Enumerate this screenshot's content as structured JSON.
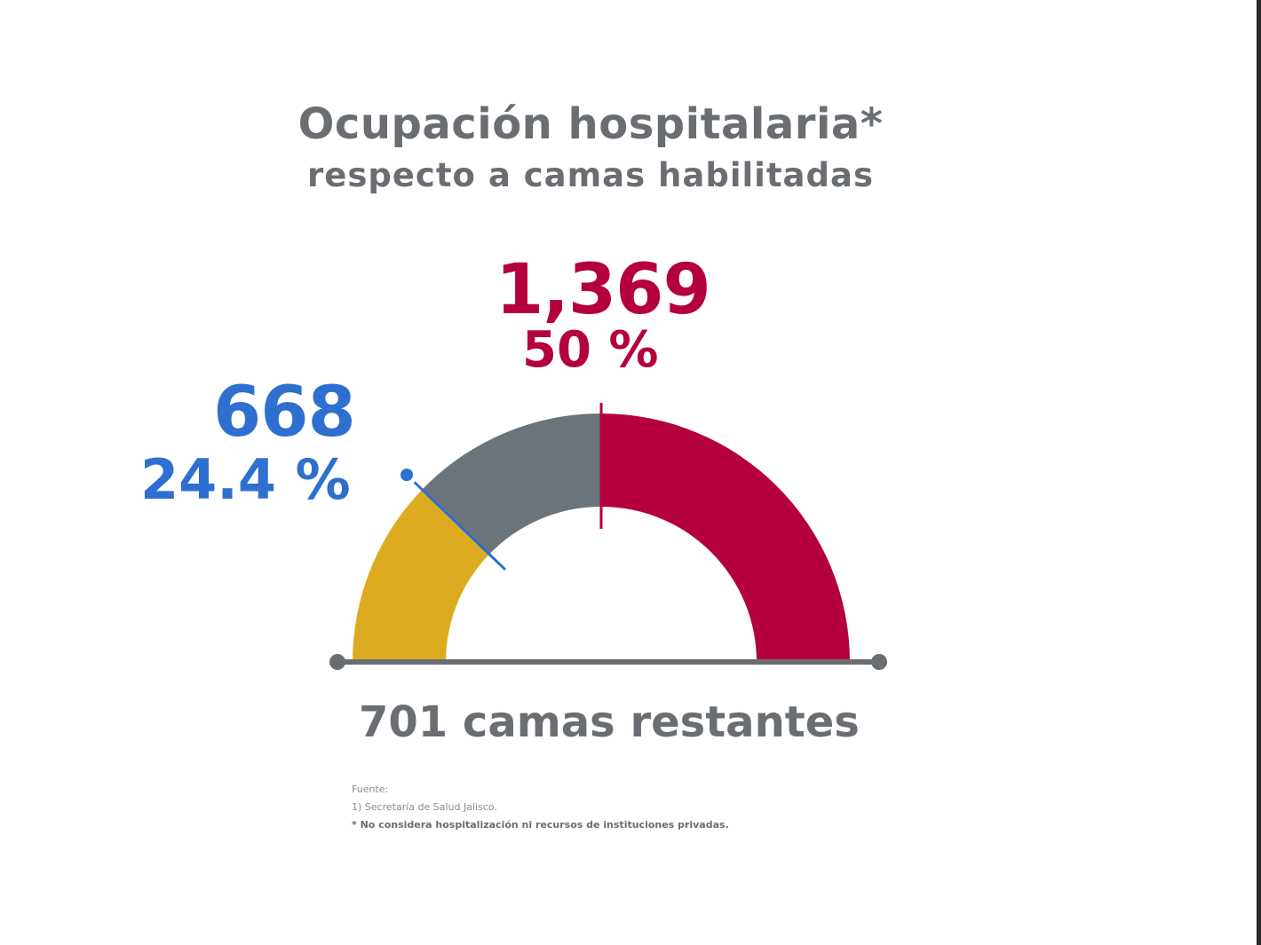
{
  "title": "Ocupación hospitalaria*",
  "subtitle": "respecto a camas habilitadas",
  "chart_data": {
    "type": "gauge",
    "segments": [
      {
        "name": "yellow-segment",
        "color": "#ddab1f",
        "fraction": 0.244
      },
      {
        "name": "gray-segment",
        "color": "#6b747b",
        "fraction": 0.256
      },
      {
        "name": "red-segment",
        "color": "#b5003f",
        "fraction": 0.5
      }
    ],
    "markers": [
      {
        "name": "blue-marker",
        "at": 0.244,
        "color": "#2e6fd0"
      },
      {
        "name": "red-marker",
        "at": 0.5,
        "color": "#b5003f"
      }
    ],
    "baseline_color": "#6a6e72",
    "labels": {
      "red_value": "1,369",
      "red_percent": "50 %",
      "blue_value": "668",
      "blue_percent": "24.4 %",
      "remaining": "701 camas restantes"
    }
  },
  "notes": {
    "source_label": "Fuente:",
    "source": "1) Secretaría de Salud Jalisco.",
    "disclaimer": "* No considera hospitalización ni recursos de instituciones privadas."
  }
}
